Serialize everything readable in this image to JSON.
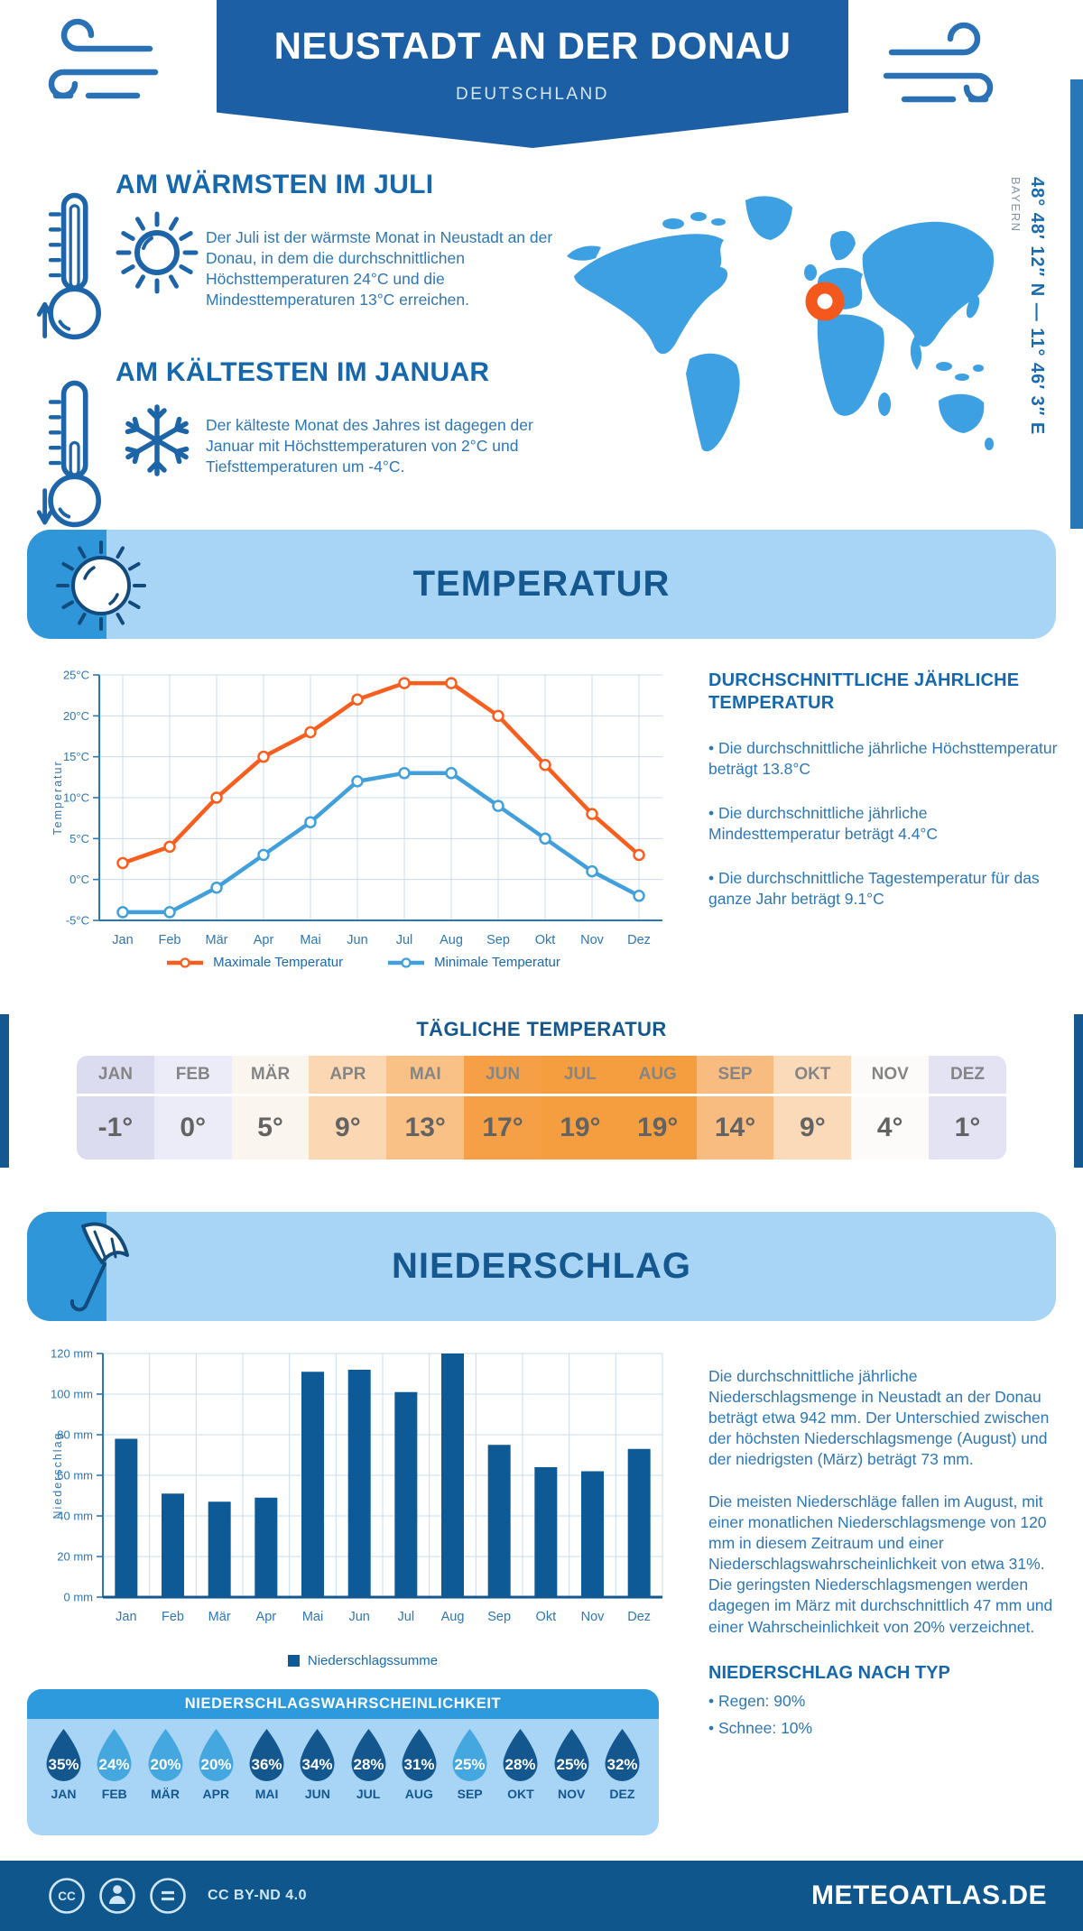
{
  "colors": {
    "banner_blue": "#1d5fa5",
    "footer_blue": "#0f568c",
    "heading_blue": "#1668ad",
    "text_blue": "#2e77b5",
    "panel_light_blue": "#a8d4f5",
    "panel_accent_blue": "#2e96d9",
    "panel_title_blue": "#15578f",
    "prob_header_blue": "#2e9ade",
    "map_blue": "#3da0e2",
    "marker_orange": "#f4581c",
    "max_line_orange": "#f95e1f",
    "min_line_blue": "#41a0dc",
    "bar_blue": "#0e5a96",
    "grid_blue": "#c9dcee",
    "axis_blue": "#2a77b8",
    "drop_dark": "#14578f",
    "drop_light": "#45a7e0"
  },
  "header": {
    "title": "NEUSTADT AN DER DONAU",
    "subtitle": "DEUTSCHLAND"
  },
  "intro": {
    "warmest": {
      "title": "AM WÄRMSTEN IM JULI",
      "text": "Der Juli ist der wärmste Monat in Neustadt an der Donau, in dem die durchschnittlichen Höchsttemperaturen 24°C und die Mindesttemperaturen 13°C erreichen."
    },
    "coldest": {
      "title": "AM KÄLTESTEN IM JANUAR",
      "text": "Der kälteste Monat des Jahres ist dagegen der Januar mit Höchsttemperaturen von 2°C und Tiefsttemperaturen um -4°C."
    },
    "coordinates": "48° 48′ 12″ N — 11° 46′ 3″ E",
    "region": "BAYERN"
  },
  "temperature": {
    "banner": "TEMPERATUR",
    "legend": [
      {
        "label": "Maximale Temperatur",
        "color": "#f95e1f"
      },
      {
        "label": "Minimale Temperatur",
        "color": "#41a0dc"
      }
    ],
    "aside_title": "DURCHSCHNITTLICHE JÄHRLICHE TEMPERATUR",
    "bullets": [
      "• Die durchschnittliche jährliche Höchsttemperatur beträgt 13.8°C",
      "• Die durchschnittliche jährliche Mindesttemperatur beträgt 4.4°C",
      "• Die durchschnittliche Tagestemperatur für das ganze Jahr beträgt 9.1°C"
    ]
  },
  "daily_temperature": {
    "title": "TÄGLICHE TEMPERATUR",
    "columns": [
      {
        "month": "JAN",
        "value": "-1°",
        "bg": "#dcdcf1"
      },
      {
        "month": "FEB",
        "value": "0°",
        "bg": "#ebecf8"
      },
      {
        "month": "MÄR",
        "value": "5°",
        "bg": "#faf5ef"
      },
      {
        "month": "APR",
        "value": "9°",
        "bg": "#fbd8b3"
      },
      {
        "month": "MAI",
        "value": "13°",
        "bg": "#f9c185"
      },
      {
        "month": "JUN",
        "value": "17°",
        "bg": "#f5a046"
      },
      {
        "month": "JUL",
        "value": "19°",
        "bg": "#f59e40"
      },
      {
        "month": "AUG",
        "value": "19°",
        "bg": "#f59e40"
      },
      {
        "month": "SEP",
        "value": "14°",
        "bg": "#f8bc80"
      },
      {
        "month": "OKT",
        "value": "9°",
        "bg": "#fbdaba"
      },
      {
        "month": "NOV",
        "value": "4°",
        "bg": "#fcfbf9"
      },
      {
        "month": "DEZ",
        "value": "1°",
        "bg": "#e3e3f4"
      }
    ]
  },
  "precipitation": {
    "banner": "NIEDERSCHLAG",
    "legend": "Niederschlagssumme",
    "paragraphs": [
      "Die durchschnittliche jährliche Niederschlagsmenge in Neustadt an der Donau beträgt etwa 942 mm. Der Unterschied zwischen der höchsten Niederschlagsmenge (August) und der niedrigsten (März) beträgt 73 mm.",
      "Die meisten Niederschläge fallen im August, mit einer monatlichen Niederschlagsmenge von 120 mm in diesem Zeitraum und einer Niederschlagswahrscheinlichkeit von etwa 31%. Die geringsten Niederschlagsmengen werden dagegen im März mit durchschnittlich 47 mm und einer Wahrscheinlichkeit von 20% verzeichnet."
    ],
    "type_title": "NIEDERSCHLAG NACH TYP",
    "type_items": [
      "• Regen: 90%",
      "• Schnee: 10%"
    ]
  },
  "probability": {
    "title": "NIEDERSCHLAGSWAHRSCHEINLICHKEIT",
    "drops": [
      {
        "month": "JAN",
        "value": "35%",
        "shade": "dark"
      },
      {
        "month": "FEB",
        "value": "24%",
        "shade": "light"
      },
      {
        "month": "MÄR",
        "value": "20%",
        "shade": "light"
      },
      {
        "month": "APR",
        "value": "20%",
        "shade": "light"
      },
      {
        "month": "MAI",
        "value": "36%",
        "shade": "dark"
      },
      {
        "month": "JUN",
        "value": "34%",
        "shade": "dark"
      },
      {
        "month": "JUL",
        "value": "28%",
        "shade": "dark"
      },
      {
        "month": "AUG",
        "value": "31%",
        "shade": "dark"
      },
      {
        "month": "SEP",
        "value": "25%",
        "shade": "light"
      },
      {
        "month": "OKT",
        "value": "28%",
        "shade": "dark"
      },
      {
        "month": "NOV",
        "value": "25%",
        "shade": "dark"
      },
      {
        "month": "DEZ",
        "value": "32%",
        "shade": "dark"
      }
    ]
  },
  "footer": {
    "license": "CC BY-ND 4.0",
    "site": "METEOATLAS.DE"
  },
  "chart_data": [
    {
      "type": "line",
      "title": "TEMPERATUR",
      "categories": [
        "Jan",
        "Feb",
        "Mär",
        "Apr",
        "Mai",
        "Jun",
        "Jul",
        "Aug",
        "Sep",
        "Okt",
        "Nov",
        "Dez"
      ],
      "series": [
        {
          "name": "Maximale Temperatur",
          "color": "#f95e1f",
          "values": [
            2,
            4,
            10,
            15,
            18,
            22,
            24,
            24,
            20,
            14,
            8,
            3
          ]
        },
        {
          "name": "Minimale Temperatur",
          "color": "#41a0dc",
          "values": [
            -4,
            -4,
            -1,
            3,
            7,
            12,
            13,
            13,
            9,
            5,
            1,
            -2
          ]
        }
      ],
      "xlabel": "",
      "ylabel": "Temperatur",
      "ylim": [
        -5,
        25
      ],
      "ytick_step": 5,
      "ytick_suffix": "°C",
      "grid": true,
      "legend_position": "bottom"
    },
    {
      "type": "bar",
      "title": "NIEDERSCHLAG",
      "categories": [
        "Jan",
        "Feb",
        "Mär",
        "Apr",
        "Mai",
        "Jun",
        "Jul",
        "Aug",
        "Sep",
        "Okt",
        "Nov",
        "Dez"
      ],
      "series": [
        {
          "name": "Niederschlagssumme",
          "color": "#0e5a96",
          "values": [
            78,
            51,
            47,
            49,
            111,
            112,
            101,
            120,
            75,
            64,
            62,
            73
          ]
        }
      ],
      "xlabel": "",
      "ylabel": "Niederschlag",
      "ylim": [
        0,
        120
      ],
      "ytick_step": 20,
      "ytick_suffix": " mm",
      "grid": true,
      "legend_position": "bottom"
    }
  ]
}
